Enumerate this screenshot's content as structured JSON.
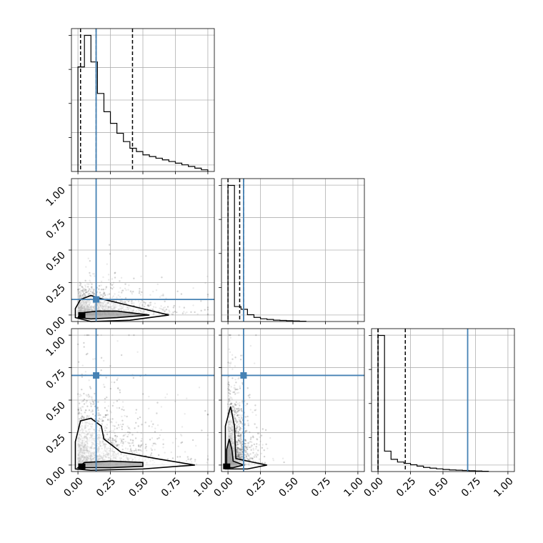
{
  "chart_data": {
    "type": "corner",
    "title": "",
    "parameters": [
      "",
      "",
      ""
    ],
    "axis_range": [
      -0.05,
      1.05
    ],
    "tick_values": [
      0.0,
      0.25,
      0.5,
      0.75,
      1.0
    ],
    "tick_labels": [
      "0.00",
      "0.25",
      "0.50",
      "0.75",
      "1.00"
    ],
    "grid": true,
    "truth_color": "#4682b4",
    "truths": [
      0.14,
      0.12,
      0.69
    ],
    "quantiles": [
      [
        0.02,
        0.14,
        0.42
      ],
      [
        0.0,
        0.09,
        0.12
      ],
      [
        0.0,
        0.0,
        0.21
      ]
    ],
    "histograms": [
      {
        "param": 0,
        "bin_edges": [
          0.0,
          0.05,
          0.1,
          0.15,
          0.2,
          0.25,
          0.3,
          0.35,
          0.4,
          0.45,
          0.5,
          0.55,
          0.6,
          0.65,
          0.7,
          0.75,
          0.8,
          0.85,
          0.9,
          0.95,
          1.0
        ],
        "counts": [
          0.63,
          0.82,
          0.66,
          0.47,
          0.36,
          0.29,
          0.23,
          0.18,
          0.14,
          0.12,
          0.1,
          0.09,
          0.08,
          0.07,
          0.06,
          0.05,
          0.04,
          0.03,
          0.02,
          0.01
        ]
      },
      {
        "param": 1,
        "bin_edges": [
          0.0,
          0.05,
          0.1,
          0.15,
          0.2,
          0.25,
          0.3,
          0.35,
          0.4,
          0.45,
          0.5,
          0.55,
          0.6
        ],
        "counts": [
          1.0,
          0.11,
          0.09,
          0.05,
          0.03,
          0.02,
          0.015,
          0.01,
          0.008,
          0.006,
          0.004,
          0.002
        ]
      },
      {
        "param": 2,
        "bin_edges": [
          0.0,
          0.05,
          0.1,
          0.15,
          0.2,
          0.25,
          0.3,
          0.35,
          0.4,
          0.45,
          0.5,
          0.55,
          0.6,
          0.65,
          0.7,
          0.75,
          0.8,
          0.85
        ],
        "counts": [
          1.0,
          0.15,
          0.09,
          0.07,
          0.06,
          0.05,
          0.04,
          0.03,
          0.025,
          0.02,
          0.015,
          0.012,
          0.01,
          0.008,
          0.006,
          0.004,
          0.002
        ]
      }
    ],
    "scatter_panels": [
      {
        "x_param": 0,
        "y_param": 1,
        "contours": [
          [
            [
              0.0,
              -0.02
            ],
            [
              0.01,
              0.0
            ],
            [
              0.05,
              0.02
            ],
            [
              0.15,
              0.03
            ],
            [
              0.3,
              0.03
            ],
            [
              0.55,
              0.0
            ],
            [
              0.3,
              -0.02
            ],
            [
              0.1,
              -0.03
            ],
            [
              0.0,
              -0.02
            ]
          ],
          [
            [
              -0.02,
              -0.02
            ],
            [
              -0.02,
              0.05
            ],
            [
              0.02,
              0.12
            ],
            [
              0.1,
              0.15
            ],
            [
              0.2,
              0.12
            ],
            [
              0.45,
              0.06
            ],
            [
              0.7,
              0.0
            ],
            [
              0.4,
              -0.04
            ],
            [
              0.1,
              -0.05
            ],
            [
              -0.02,
              -0.02
            ]
          ]
        ],
        "peak": [
          0.03,
          0.0
        ]
      },
      {
        "x_param": 0,
        "y_param": 2,
        "contours": [
          [
            [
              0.0,
              -0.02
            ],
            [
              0.05,
              0.02
            ],
            [
              0.25,
              0.03
            ],
            [
              0.5,
              0.02
            ],
            [
              0.5,
              -0.01
            ],
            [
              0.25,
              -0.02
            ],
            [
              0.0,
              -0.02
            ]
          ],
          [
            [
              -0.02,
              -0.03
            ],
            [
              -0.02,
              0.18
            ],
            [
              0.02,
              0.34
            ],
            [
              0.1,
              0.36
            ],
            [
              0.18,
              0.3
            ],
            [
              0.2,
              0.2
            ],
            [
              0.33,
              0.1
            ],
            [
              0.6,
              0.05
            ],
            [
              0.9,
              0.0
            ],
            [
              0.5,
              -0.03
            ],
            [
              0.1,
              -0.04
            ],
            [
              -0.02,
              -0.03
            ]
          ]
        ],
        "peak": [
          0.03,
          -0.01
        ]
      },
      {
        "x_param": 1,
        "y_param": 2,
        "contours": [
          [
            [
              -0.01,
              -0.02
            ],
            [
              -0.01,
              0.12
            ],
            [
              0.01,
              0.2
            ],
            [
              0.03,
              0.12
            ],
            [
              0.04,
              0.03
            ],
            [
              0.12,
              0.0
            ],
            [
              0.04,
              -0.02
            ],
            [
              -0.01,
              -0.02
            ]
          ],
          [
            [
              -0.02,
              -0.03
            ],
            [
              -0.02,
              0.3
            ],
            [
              0.02,
              0.45
            ],
            [
              0.05,
              0.3
            ],
            [
              0.06,
              0.05
            ],
            [
              0.2,
              0.02
            ],
            [
              0.3,
              0.0
            ],
            [
              0.15,
              -0.03
            ],
            [
              -0.02,
              -0.03
            ]
          ]
        ],
        "peak": [
          -0.01,
          -0.01
        ]
      }
    ]
  }
}
